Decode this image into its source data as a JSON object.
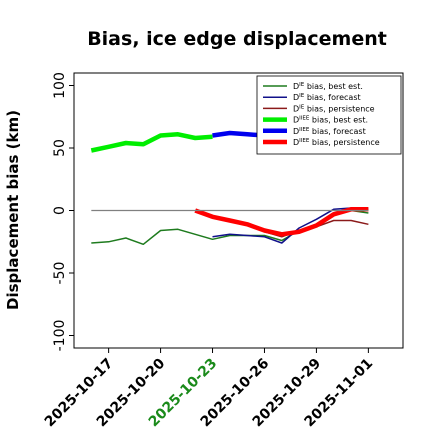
{
  "chart_data": {
    "type": "line",
    "title": "Bias, ice edge displacement",
    "xlabel": "",
    "ylabel": "Displacement bias (km)",
    "ylim": [
      -110,
      110
    ],
    "yticks": [
      -100,
      -50,
      0,
      50,
      100
    ],
    "xlim": [
      "2025-10-15",
      "2025-11-03"
    ],
    "xticks": [
      {
        "label": "2025-10-17",
        "date": "2025-10-17",
        "color": "#000000"
      },
      {
        "label": "2025-10-20",
        "date": "2025-10-20",
        "color": "#000000"
      },
      {
        "label": "2025-10-23",
        "date": "2025-10-23",
        "color": "#1a8a1a"
      },
      {
        "label": "2025-10-26",
        "date": "2025-10-26",
        "color": "#000000"
      },
      {
        "label": "2025-10-29",
        "date": "2025-10-29",
        "color": "#000000"
      },
      {
        "label": "2025-11-01",
        "date": "2025-11-01",
        "color": "#000000"
      }
    ],
    "zero_line": 0,
    "grid": false,
    "legend_placement": "top-right",
    "series": [
      {
        "legend_main": "D",
        "legend_sup": "IE",
        "legend_rest": " bias, best est.",
        "color": "#1e7b1e",
        "width": 1.5,
        "x": [
          "2025-10-16",
          "2025-10-17",
          "2025-10-18",
          "2025-10-19",
          "2025-10-20",
          "2025-10-21",
          "2025-10-22",
          "2025-10-23",
          "2025-10-24",
          "2025-10-25",
          "2025-10-26",
          "2025-10-27",
          "2025-10-28",
          "2025-10-29",
          "2025-10-30",
          "2025-10-31",
          "2025-11-01"
        ],
        "y": [
          -26,
          -25,
          -22,
          -27,
          -16,
          -15,
          -19,
          -23,
          -20,
          -20,
          -20,
          -24,
          -16,
          -13,
          -4,
          0,
          -2
        ]
      },
      {
        "legend_main": "D",
        "legend_sup": "IE",
        "legend_rest": " bias, forecast",
        "color": "#10108a",
        "width": 1.5,
        "x": [
          "2025-10-23",
          "2025-10-24",
          "2025-10-25",
          "2025-10-26",
          "2025-10-27",
          "2025-10-28",
          "2025-10-29",
          "2025-10-30",
          "2025-10-31",
          "2025-11-01"
        ],
        "y": [
          -21,
          -19,
          -20,
          -21,
          -26,
          -14,
          -7,
          1,
          2,
          1
        ]
      },
      {
        "legend_main": "D",
        "legend_sup": "IE",
        "legend_rest": " bias, persistence",
        "color": "#8b1a1a",
        "width": 1.5,
        "x": [
          "2025-10-22",
          "2025-10-23",
          "2025-10-24",
          "2025-10-25",
          "2025-10-26",
          "2025-10-27",
          "2025-10-28",
          "2025-10-29",
          "2025-10-30",
          "2025-10-31",
          "2025-11-01"
        ],
        "y": [
          0,
          -5,
          -8,
          -11,
          -17,
          -21,
          -16,
          -13,
          -8,
          -8,
          -11
        ]
      },
      {
        "legend_main": "D",
        "legend_sup": "IIEE",
        "legend_rest": " bias, best est.",
        "color": "#00ee00",
        "width": 4.5,
        "x": [
          "2025-10-16",
          "2025-10-17",
          "2025-10-18",
          "2025-10-19",
          "2025-10-20",
          "2025-10-21",
          "2025-10-22",
          "2025-10-23"
        ],
        "y": [
          48,
          51,
          54,
          53,
          60,
          61,
          58,
          59
        ]
      },
      {
        "legend_main": "D",
        "legend_sup": "IIEE",
        "legend_rest": " bias, forecast",
        "color": "#0000ee",
        "width": 4.5,
        "x": [
          "2025-10-23",
          "2025-10-24",
          "2025-10-25",
          "2025-10-26"
        ],
        "y": [
          60,
          62,
          61,
          60
        ]
      },
      {
        "legend_main": "D",
        "legend_sup": "IIEE",
        "legend_rest": " bias, persistence",
        "color": "#ff0000",
        "width": 4.5,
        "x": [
          "2025-10-22",
          "2025-10-23",
          "2025-10-24",
          "2025-10-25",
          "2025-10-26",
          "2025-10-27",
          "2025-10-28",
          "2025-10-29",
          "2025-10-30",
          "2025-10-31",
          "2025-11-01"
        ],
        "y": [
          0,
          -5,
          -8,
          -11,
          -16,
          -19,
          -17,
          -12,
          -3,
          1,
          1
        ]
      }
    ]
  }
}
